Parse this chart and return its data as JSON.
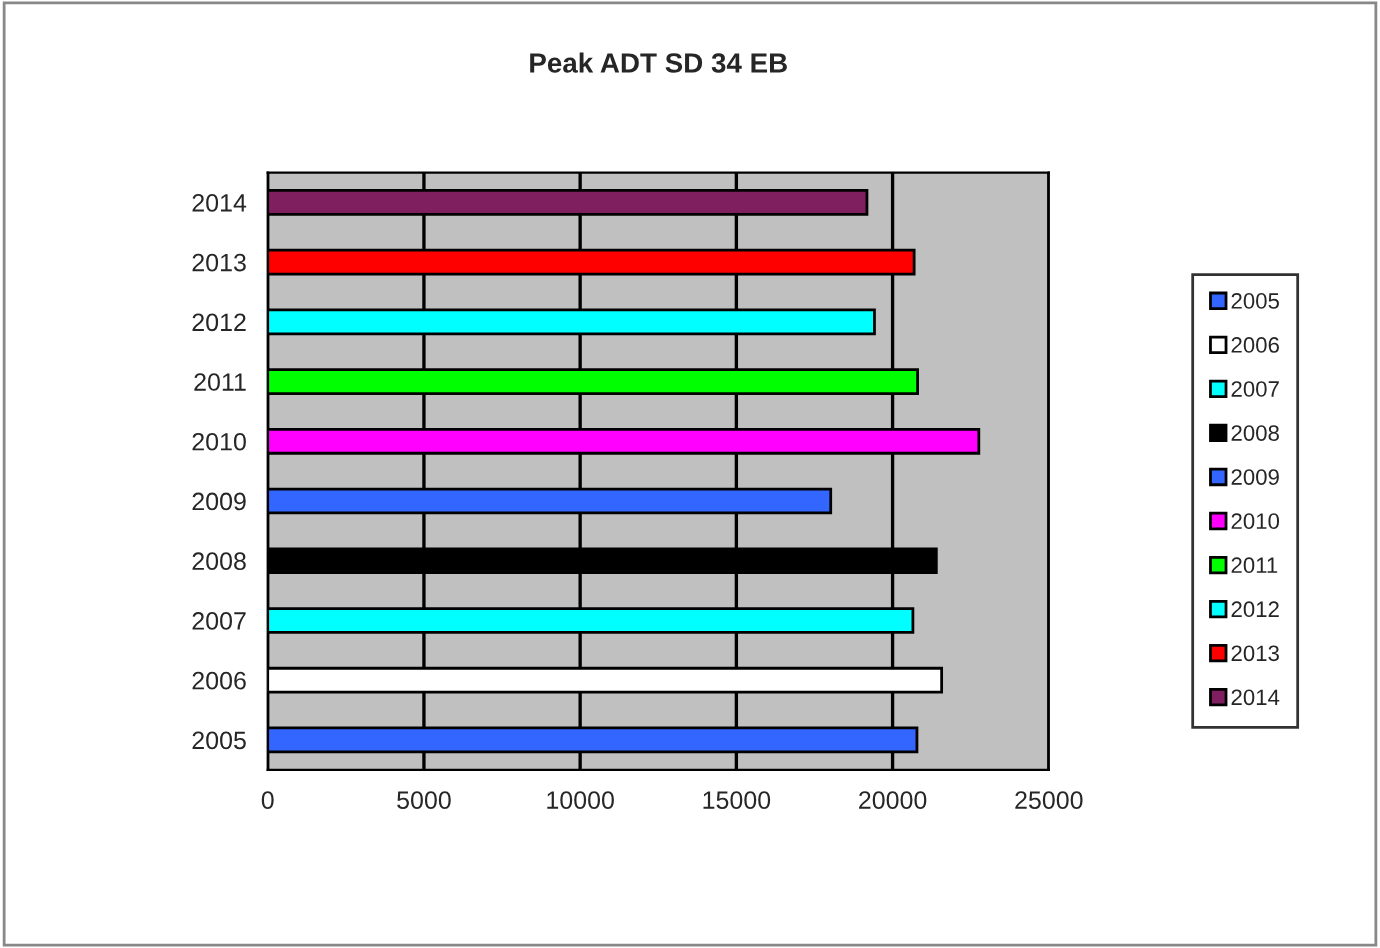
{
  "chart_data": {
    "type": "bar",
    "orientation": "horizontal",
    "title": "Peak ADT SD 34 EB",
    "categories": [
      "2014",
      "2013",
      "2012",
      "2011",
      "2010",
      "2009",
      "2008",
      "2007",
      "2006",
      "2005"
    ],
    "series": [
      {
        "name": "2005",
        "color": "#3366ff",
        "values": [
          null,
          null,
          null,
          null,
          null,
          null,
          null,
          null,
          null,
          20780
        ]
      },
      {
        "name": "2006",
        "color": "#ffffff",
        "values": [
          null,
          null,
          null,
          null,
          null,
          null,
          null,
          null,
          21570,
          null
        ]
      },
      {
        "name": "2007",
        "color": "#00ffff",
        "values": [
          null,
          null,
          null,
          null,
          null,
          null,
          null,
          20650,
          null,
          null
        ]
      },
      {
        "name": "2008",
        "color": "#000000",
        "values": [
          null,
          null,
          null,
          null,
          null,
          null,
          21400,
          null,
          null,
          null
        ]
      },
      {
        "name": "2009",
        "color": "#3366ff",
        "values": [
          null,
          null,
          null,
          null,
          null,
          18020,
          null,
          null,
          null,
          null
        ]
      },
      {
        "name": "2010",
        "color": "#ff00ff",
        "values": [
          null,
          null,
          null,
          null,
          22760,
          null,
          null,
          null,
          null,
          null
        ]
      },
      {
        "name": "2011",
        "color": "#00ff00",
        "values": [
          null,
          null,
          null,
          20800,
          null,
          null,
          null,
          null,
          null,
          null
        ]
      },
      {
        "name": "2012",
        "color": "#00ffff",
        "values": [
          null,
          null,
          19420,
          null,
          null,
          null,
          null,
          null,
          null,
          null
        ]
      },
      {
        "name": "2013",
        "color": "#ff0000",
        "values": [
          null,
          20690,
          null,
          null,
          null,
          null,
          null,
          null,
          null,
          null
        ]
      },
      {
        "name": "2014",
        "color": "#7f1f5f",
        "values": [
          19180,
          null,
          null,
          null,
          null,
          null,
          null,
          null,
          null,
          null
        ]
      }
    ],
    "xlim": [
      0,
      25000
    ],
    "xticks": [
      0,
      5000,
      10000,
      15000,
      20000,
      25000
    ],
    "grid": "x",
    "legend": "right"
  }
}
